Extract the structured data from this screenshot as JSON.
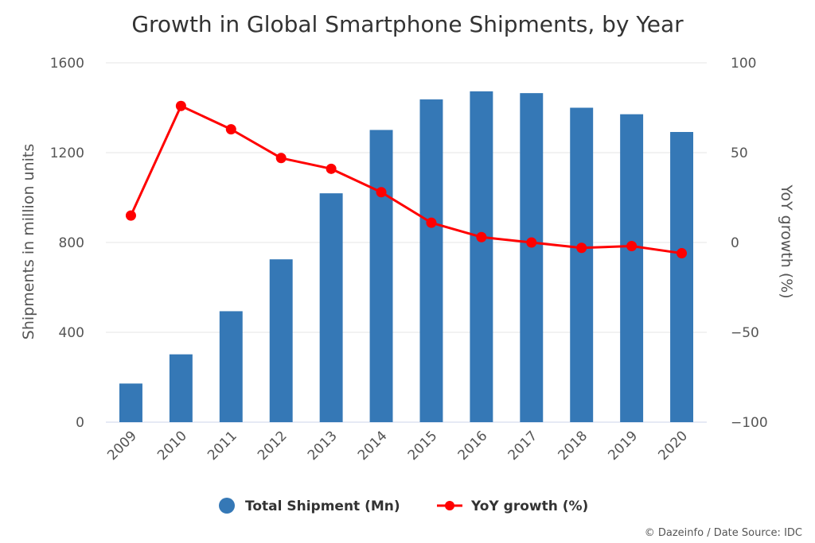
{
  "chart_data": {
    "type": "bar",
    "title": "Growth in Global Smartphone Shipments, by Year",
    "categories": [
      "2009",
      "2010",
      "2011",
      "2012",
      "2013",
      "2014",
      "2015",
      "2016",
      "2017",
      "2018",
      "2019",
      "2020"
    ],
    "series": [
      {
        "name": "Total Shipment (Mn)",
        "type": "bar",
        "axis": "left",
        "color": "#3578b6",
        "values": [
          172,
          302,
          494,
          725,
          1019,
          1301,
          1437,
          1473,
          1465,
          1400,
          1371,
          1292
        ]
      },
      {
        "name": "YoY growth (%)",
        "type": "line",
        "axis": "right",
        "color": "#ff0000",
        "values": [
          15,
          76,
          63,
          47,
          41,
          28,
          11,
          3,
          0,
          -3,
          -2,
          -6
        ]
      }
    ],
    "ylabel": "Shipments in million units",
    "ylim": [
      0,
      1600
    ],
    "yticks": [
      "0",
      "400",
      "800",
      "1200",
      "1600"
    ],
    "y2label": "YoY growth (%)",
    "y2lim": [
      -100,
      100
    ],
    "y2ticks": [
      "−100",
      "−50",
      "0",
      "50",
      "100"
    ],
    "grid": true,
    "legend_position": "bottom-center"
  },
  "credit": "© Dazeinfo / Date Source: IDC"
}
